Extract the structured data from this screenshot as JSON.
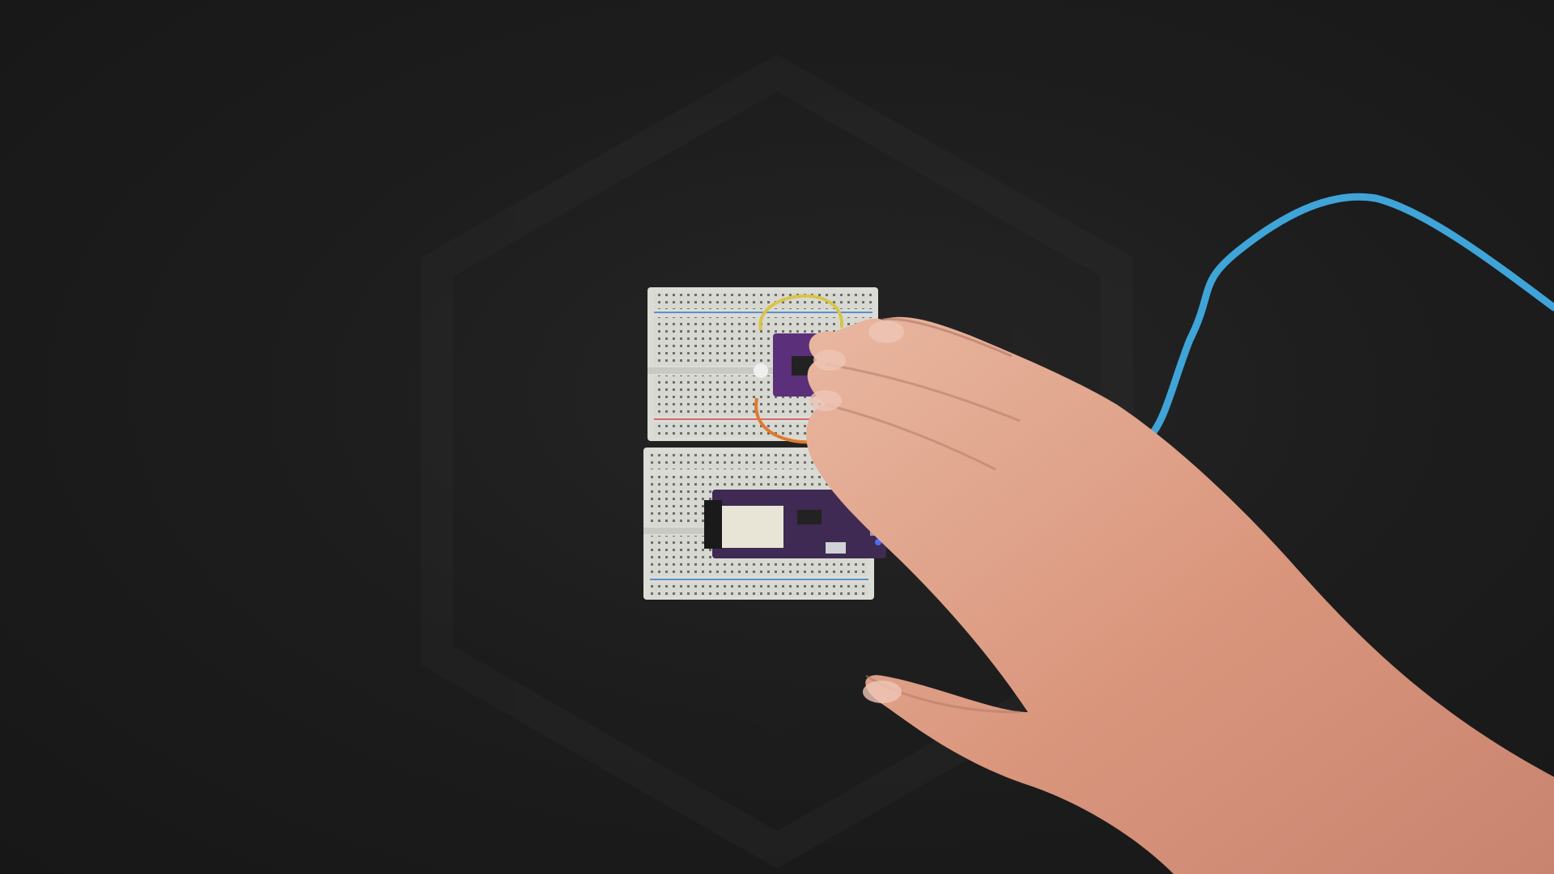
{
  "scene": {
    "description_icons": {
      "mat": "cutting-mat",
      "breadboard_top": "breadboard",
      "breadboard_bottom": "breadboard",
      "sensor_board": "sensor-breakout-board",
      "mcu_board": "microcontroller-board",
      "usb_cable": "usb-cable",
      "hand": "hand"
    },
    "colors": {
      "mat": "#1d1d1d",
      "breadboard": "#d9d9d4",
      "rail_blue": "#5a8fd0",
      "rail_red": "#d46a6a",
      "pcb_purple": "#5b2f79",
      "wire_yellow": "#d9c44a",
      "wire_orange": "#e07a2f",
      "cable_blue": "#3fa4d8",
      "skin": "#e0a58e"
    }
  }
}
